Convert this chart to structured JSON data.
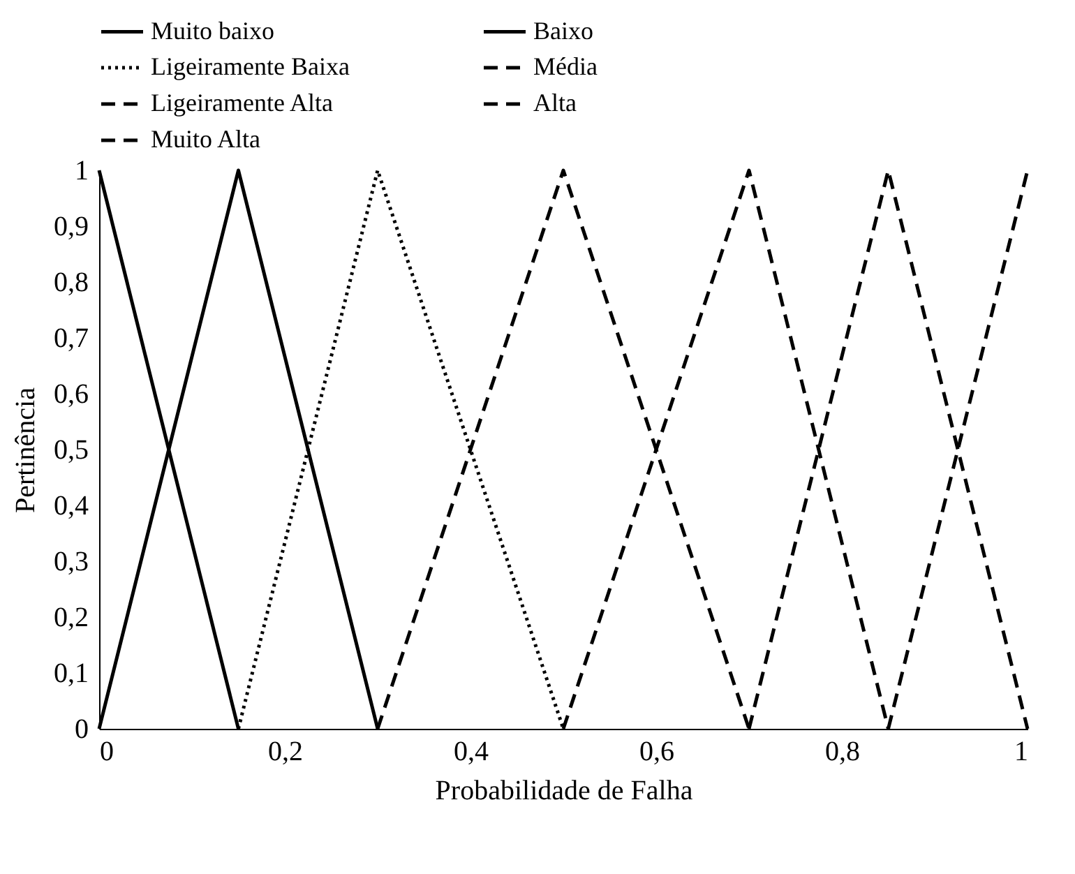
{
  "chart_data": {
    "type": "line",
    "xlabel": "Probabilidade de Falha",
    "ylabel": "Pertinência",
    "xlim": [
      0,
      1
    ],
    "ylim": [
      0,
      1
    ],
    "xticks": [
      0,
      {
        "value": 0.2,
        "label": "0,2"
      },
      {
        "value": 0.4,
        "label": "0,4"
      },
      {
        "value": 0.6,
        "label": "0,6"
      },
      {
        "value": 0.8,
        "label": "0,8"
      },
      1
    ],
    "yticks": [
      0,
      {
        "value": 0.1,
        "label": "0,1"
      },
      {
        "value": 0.2,
        "label": "0,2"
      },
      {
        "value": 0.3,
        "label": "0,3"
      },
      {
        "value": 0.4,
        "label": "0,4"
      },
      {
        "value": 0.5,
        "label": "0,5"
      },
      {
        "value": 0.6,
        "label": "0,6"
      },
      {
        "value": 0.7,
        "label": "0,7"
      },
      {
        "value": 0.8,
        "label": "0,8"
      },
      {
        "value": 0.9,
        "label": "0,9"
      },
      1
    ],
    "grid": false,
    "legend": "top",
    "marker": "none",
    "series": [
      {
        "name": "Muito baixo",
        "color": "#000000",
        "line_style": "solid",
        "x": [
          0,
          0.15
        ],
        "values": [
          1,
          0
        ]
      },
      {
        "name": "Baixo",
        "color": "#000000",
        "line_style": "solid",
        "x": [
          0,
          0.15,
          0.3
        ],
        "values": [
          0,
          1,
          0
        ]
      },
      {
        "name": "Ligeiramente Baixa",
        "color": "#000000",
        "line_style": "dotted",
        "x": [
          0.15,
          0.3,
          0.5
        ],
        "values": [
          0,
          1,
          0
        ]
      },
      {
        "name": "Média",
        "color": "#000000",
        "line_style": "dashed",
        "x": [
          0.3,
          0.5,
          0.7
        ],
        "values": [
          0,
          1,
          0
        ]
      },
      {
        "name": "Ligeiramente Alta",
        "color": "#000000",
        "line_style": "dashed",
        "x": [
          0.5,
          0.7,
          0.85
        ],
        "values": [
          0,
          1,
          0
        ]
      },
      {
        "name": "Alta",
        "color": "#000000",
        "line_style": "dashed",
        "x": [
          0.7,
          0.85,
          1
        ],
        "values": [
          0,
          1,
          0
        ]
      },
      {
        "name": "Muito Alta",
        "color": "#000000",
        "line_style": "dashed",
        "x": [
          0.85,
          1
        ],
        "values": [
          0,
          1
        ]
      }
    ]
  }
}
